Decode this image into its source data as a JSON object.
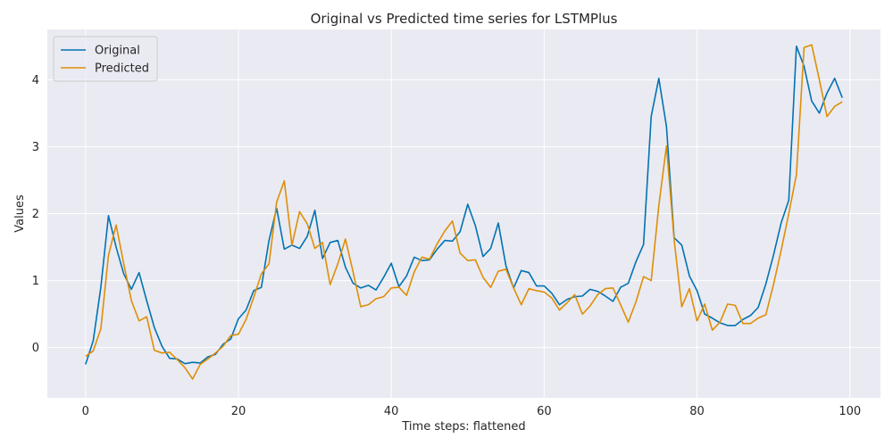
{
  "chart_data": {
    "type": "line",
    "title": "Original vs Predicted time series for LSTMPlus",
    "xlabel": "Time steps: flattened",
    "ylabel": "Values",
    "xlim": [
      -5,
      104
    ],
    "ylim": [
      -0.75,
      4.75
    ],
    "xticks": [
      0,
      20,
      40,
      60,
      80,
      100
    ],
    "yticks": [
      0,
      1,
      2,
      3,
      4
    ],
    "grid": true,
    "legend_position": "top-left",
    "series": [
      {
        "name": "Original",
        "color": "#0173b2",
        "values": [
          -0.25,
          0.1,
          0.9,
          1.97,
          1.5,
          1.1,
          0.87,
          1.12,
          0.7,
          0.3,
          0.02,
          -0.16,
          -0.17,
          -0.24,
          -0.22,
          -0.23,
          -0.14,
          -0.1,
          0.05,
          0.13,
          0.43,
          0.56,
          0.85,
          0.9,
          1.6,
          2.08,
          1.47,
          1.53,
          1.48,
          1.66,
          2.05,
          1.33,
          1.57,
          1.6,
          1.2,
          0.96,
          0.89,
          0.93,
          0.86,
          1.05,
          1.26,
          0.91,
          1.07,
          1.35,
          1.3,
          1.31,
          1.47,
          1.6,
          1.59,
          1.73,
          2.14,
          1.82,
          1.36,
          1.48,
          1.86,
          1.22,
          0.89,
          1.15,
          1.12,
          0.92,
          0.92,
          0.81,
          0.64,
          0.72,
          0.76,
          0.77,
          0.87,
          0.84,
          0.77,
          0.69,
          0.9,
          0.96,
          1.28,
          1.54,
          3.45,
          4.02,
          3.3,
          1.64,
          1.53,
          1.07,
          0.85,
          0.5,
          0.44,
          0.37,
          0.33,
          0.33,
          0.42,
          0.48,
          0.6,
          0.95,
          1.38,
          1.86,
          2.2,
          4.5,
          4.2,
          3.68,
          3.5,
          3.8,
          4.02,
          3.73
        ]
      },
      {
        "name": "Predicted",
        "color": "#de8f05",
        "values": [
          -0.13,
          -0.05,
          0.28,
          1.38,
          1.83,
          1.25,
          0.7,
          0.4,
          0.46,
          -0.04,
          -0.08,
          -0.07,
          -0.18,
          -0.3,
          -0.47,
          -0.25,
          -0.17,
          -0.08,
          0.02,
          0.18,
          0.2,
          0.42,
          0.75,
          1.1,
          1.25,
          2.17,
          2.49,
          1.53,
          2.03,
          1.85,
          1.48,
          1.57,
          0.94,
          1.25,
          1.62,
          1.13,
          0.61,
          0.64,
          0.73,
          0.76,
          0.89,
          0.9,
          0.78,
          1.13,
          1.35,
          1.32,
          1.55,
          1.74,
          1.89,
          1.41,
          1.3,
          1.31,
          1.05,
          0.9,
          1.14,
          1.17,
          0.89,
          0.64,
          0.88,
          0.85,
          0.83,
          0.74,
          0.56,
          0.67,
          0.79,
          0.5,
          0.62,
          0.79,
          0.88,
          0.89,
          0.64,
          0.38,
          0.68,
          1.06,
          1.0,
          2.12,
          3.01,
          1.61,
          0.61,
          0.88,
          0.4,
          0.65,
          0.26,
          0.38,
          0.65,
          0.63,
          0.36,
          0.36,
          0.44,
          0.49,
          0.94,
          1.45,
          2.0,
          2.58,
          4.48,
          4.52,
          4.0,
          3.45,
          3.6,
          3.67
        ]
      }
    ]
  }
}
